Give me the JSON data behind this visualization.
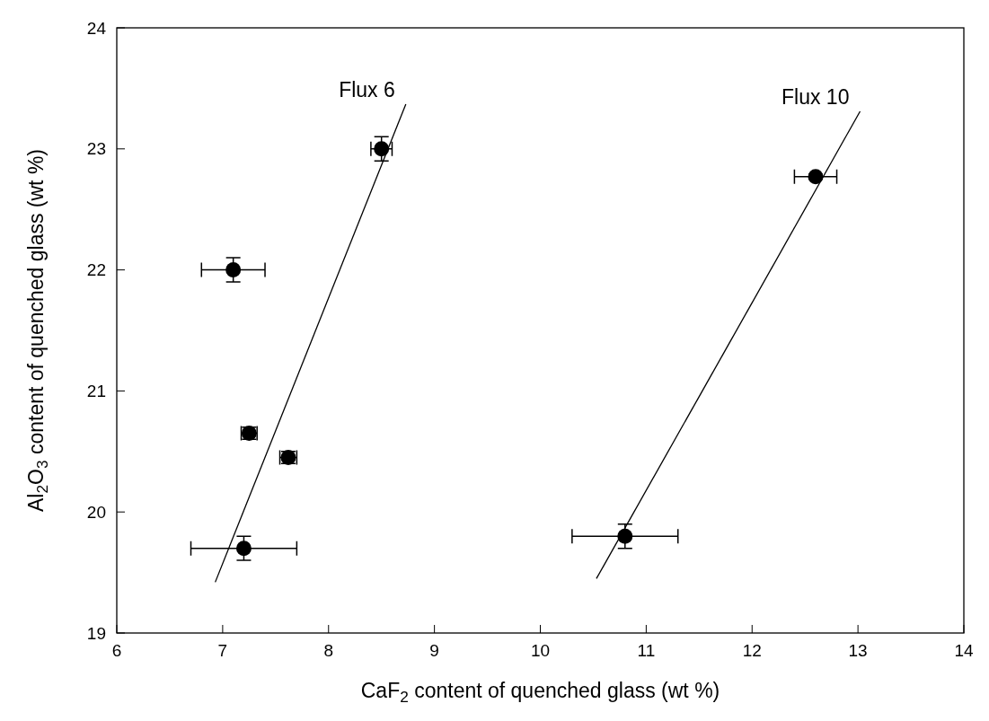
{
  "chart_data": {
    "type": "scatter",
    "xlabel": "CaF$_{2}$ content of quenched glass (wt %)",
    "ylabel": "Al$_{2}$O$_{3}$ content of quenched glass (wt %)",
    "xlim": [
      6,
      14
    ],
    "xticks": [
      6,
      7,
      8,
      9,
      10,
      11,
      12,
      13,
      14
    ],
    "ylim": [
      19,
      24
    ],
    "yticks": [
      19,
      20,
      21,
      22,
      23,
      24
    ],
    "grid": false,
    "marker": "circle",
    "series": [
      {
        "color": "#000000",
        "x": [
          8.5,
          7.1,
          7.25,
          7.62,
          7.2,
          10.8,
          12.6
        ],
        "values": [
          23.0,
          22.0,
          20.65,
          20.45,
          19.7,
          19.8,
          22.77
        ],
        "errors": [
          0.1,
          0.1,
          0.05,
          0.05,
          0.1,
          0.1,
          0.02
        ],
        "xerrors": [
          0.1,
          0.3,
          0.075,
          0.08,
          0.5,
          0.5,
          0.2
        ]
      },
      {
        "type": "line",
        "color": "#000000",
        "marker": "none",
        "line_style": "solid",
        "x": [
          6.93,
          8.73
        ],
        "values": [
          19.42,
          23.37
        ]
      },
      {
        "type": "line",
        "color": "#000000",
        "marker": "none",
        "line_style": "solid",
        "x": [
          10.53,
          13.02
        ],
        "values": [
          19.45,
          23.31
        ]
      }
    ],
    "annotations": [
      "Flux 6",
      "Flux 10"
    ]
  }
}
